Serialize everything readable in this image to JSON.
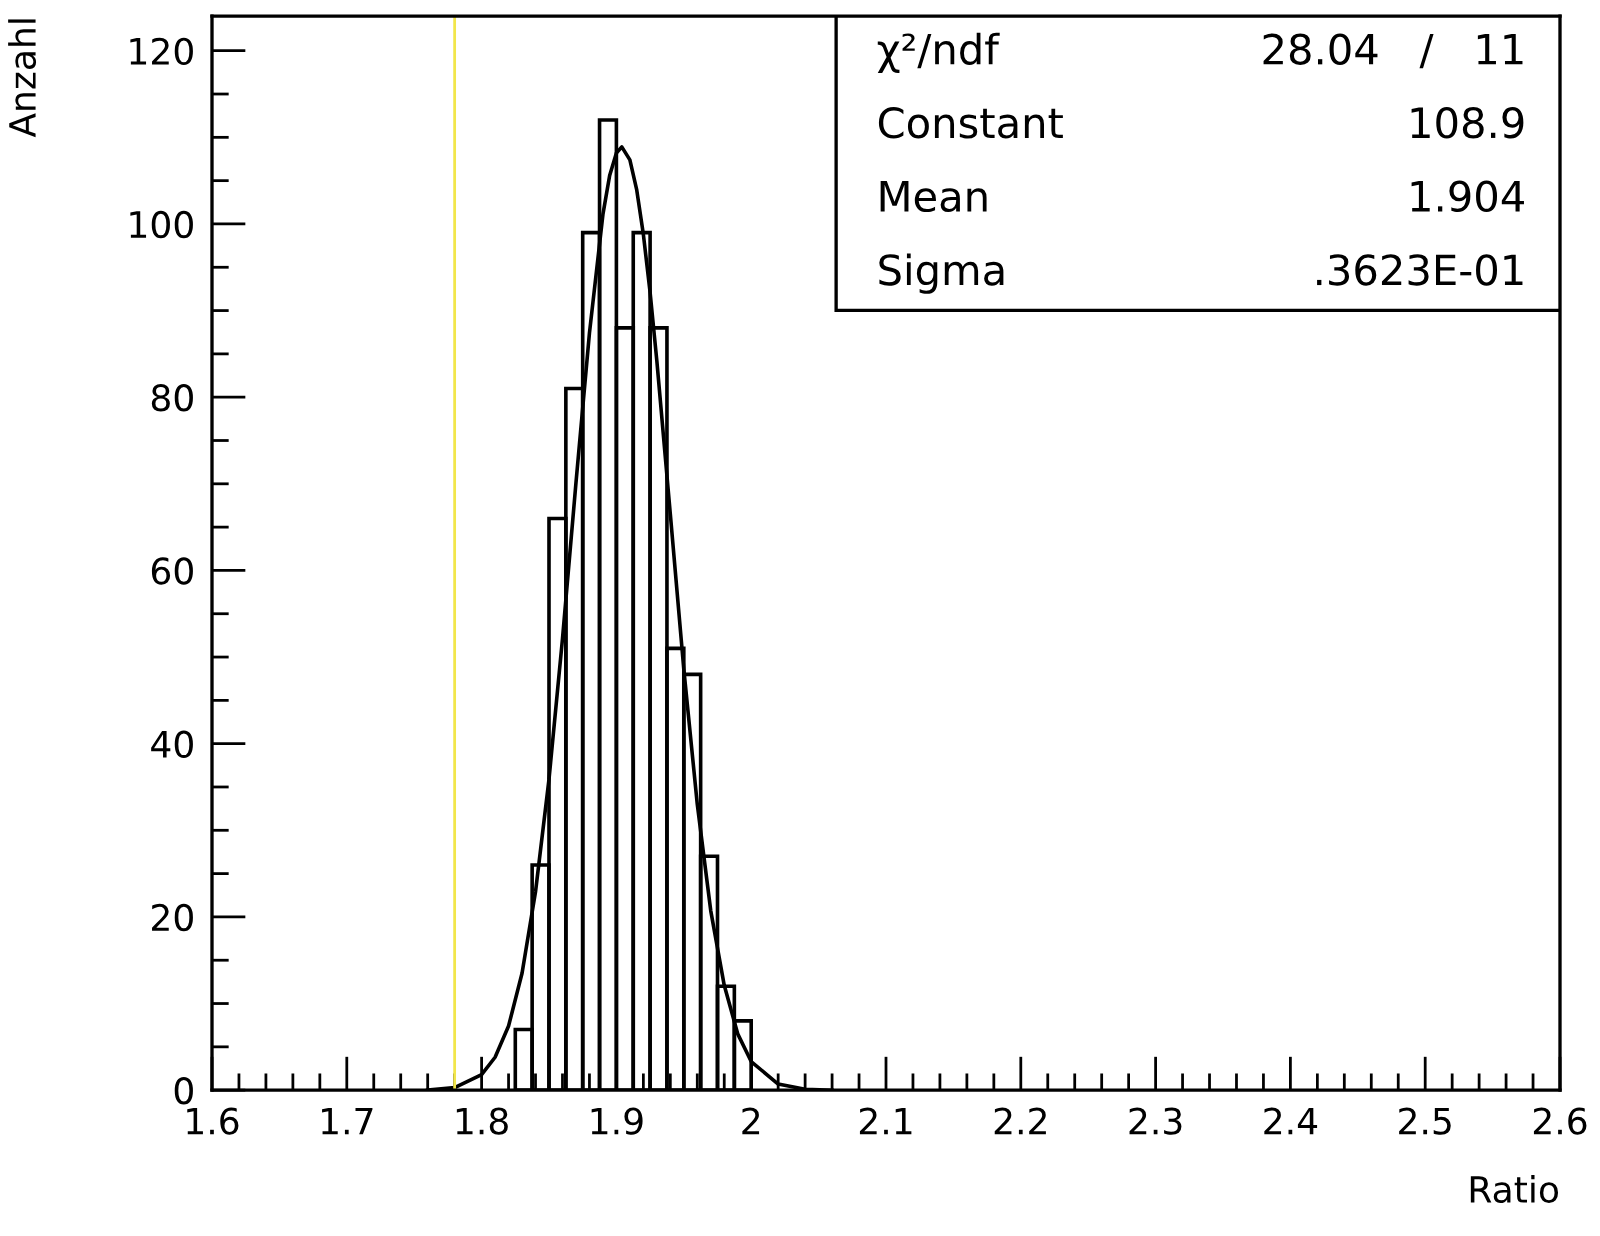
{
  "chart_data": {
    "type": "histogram",
    "xlabel": "Ratio",
    "ylabel": "Anzahl",
    "bins": [
      1.825,
      1.8375,
      1.85,
      1.8625,
      1.875,
      1.8875,
      1.9,
      1.9125,
      1.925,
      1.9375,
      1.95,
      1.9625,
      1.975,
      1.9875,
      2.0
    ],
    "values": [
      7,
      26,
      66,
      81,
      99,
      112,
      88,
      99,
      88,
      51,
      48,
      27,
      12,
      8
    ],
    "color": "#000000",
    "series": [
      {
        "type": "line",
        "color": "#000000",
        "x": [
          1.76,
          1.78,
          1.8,
          1.81,
          1.82,
          1.83,
          1.84,
          1.85,
          1.86,
          1.87,
          1.88,
          1.89,
          1.895,
          1.9,
          1.904,
          1.91,
          1.915,
          1.92,
          1.925,
          1.93,
          1.94,
          1.95,
          1.96,
          1.97,
          1.98,
          1.99,
          2.0,
          2.02,
          2.04,
          2.06
        ],
        "values": [
          0,
          0.3,
          1.8,
          3.8,
          7.4,
          13.5,
          22.9,
          35.9,
          52.1,
          70.1,
          87.4,
          101.1,
          105.6,
          108.2,
          108.9,
          107.4,
          104.0,
          98.8,
          92.1,
          84.2,
          66.5,
          48.6,
          33.0,
          20.7,
          12.1,
          6.5,
          3.3,
          0.7,
          0.1,
          0
        ]
      }
    ],
    "xlim": [
      1.6,
      2.6
    ],
    "xticks": [
      1.6,
      {
        "value": 1.62,
        "label": null
      },
      {
        "value": 1.64,
        "label": null
      },
      {
        "value": 1.66,
        "label": null
      },
      {
        "value": 1.68,
        "label": null
      },
      1.7,
      {
        "value": 1.72,
        "label": null
      },
      {
        "value": 1.74,
        "label": null
      },
      {
        "value": 1.76,
        "label": null
      },
      {
        "value": 1.78,
        "label": null
      },
      1.8,
      {
        "value": 1.82,
        "label": null
      },
      {
        "value": 1.84,
        "label": null
      },
      {
        "value": 1.86,
        "label": null
      },
      {
        "value": 1.88,
        "label": null
      },
      1.9,
      {
        "value": 1.92,
        "label": null
      },
      {
        "value": 1.94,
        "label": null
      },
      {
        "value": 1.96,
        "label": null
      },
      {
        "value": 1.98,
        "label": null
      },
      2,
      {
        "value": 2.02,
        "label": null
      },
      {
        "value": 2.04,
        "label": null
      },
      {
        "value": 2.06,
        "label": null
      },
      {
        "value": 2.08,
        "label": null
      },
      2.1,
      {
        "value": 2.12,
        "label": null
      },
      {
        "value": 2.14,
        "label": null
      },
      {
        "value": 2.16,
        "label": null
      },
      {
        "value": 2.18,
        "label": null
      },
      2.2,
      {
        "value": 2.22,
        "label": null
      },
      {
        "value": 2.24,
        "label": null
      },
      {
        "value": 2.26,
        "label": null
      },
      {
        "value": 2.28,
        "label": null
      },
      2.3,
      {
        "value": 2.32,
        "label": null
      },
      {
        "value": 2.34,
        "label": null
      },
      {
        "value": 2.36,
        "label": null
      },
      {
        "value": 2.38,
        "label": null
      },
      2.4,
      {
        "value": 2.42,
        "label": null
      },
      {
        "value": 2.44,
        "label": null
      },
      {
        "value": 2.46,
        "label": null
      },
      {
        "value": 2.48,
        "label": null
      },
      2.5,
      {
        "value": 2.52,
        "label": null
      },
      {
        "value": 2.54,
        "label": null
      },
      {
        "value": 2.56,
        "label": null
      },
      {
        "value": 2.58,
        "label": null
      },
      2.6
    ],
    "ylim": [
      0,
      124
    ],
    "yticks": [
      0,
      {
        "value": 5,
        "label": null
      },
      {
        "value": 10,
        "label": null
      },
      {
        "value": 15,
        "label": null
      },
      20,
      {
        "value": 25,
        "label": null
      },
      {
        "value": 30,
        "label": null
      },
      {
        "value": 35,
        "label": null
      },
      40,
      {
        "value": 45,
        "label": null
      },
      {
        "value": 50,
        "label": null
      },
      {
        "value": 55,
        "label": null
      },
      60,
      {
        "value": 65,
        "label": null
      },
      {
        "value": 70,
        "label": null
      },
      {
        "value": 75,
        "label": null
      },
      80,
      {
        "value": 85,
        "label": null
      },
      {
        "value": 90,
        "label": null
      },
      {
        "value": 95,
        "label": null
      },
      100,
      {
        "value": 105,
        "label": null
      },
      {
        "value": 110,
        "label": null
      },
      {
        "value": 115,
        "label": null
      },
      120
    ],
    "ref_lines": [
      {
        "axis": "x",
        "value": 1.78,
        "color": "#f2e64a"
      }
    ],
    "annotations": [
      "χ²/ndf",
      "28.04   /   11",
      "Constant",
      "108.9",
      "Mean",
      "1.904",
      "Sigma",
      ".3623E-01"
    ]
  }
}
